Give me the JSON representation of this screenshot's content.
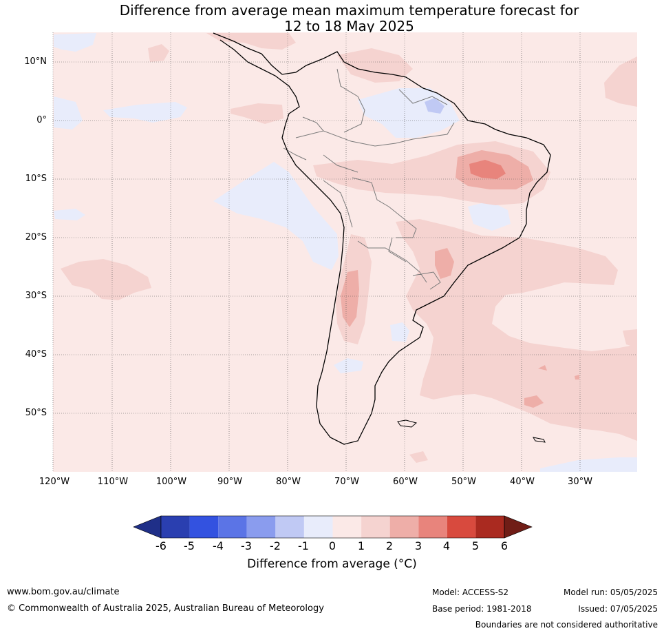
{
  "title": {
    "line1": "Difference from average mean maximum temperature forecast for",
    "line2": "12 to 18 May 2025"
  },
  "map": {
    "lat_labels": [
      "10°N",
      "0°",
      "10°S",
      "20°S",
      "30°S",
      "40°S",
      "50°S"
    ],
    "lon_labels": [
      "120°W",
      "110°W",
      "100°W",
      "90°W",
      "80°W",
      "70°W",
      "60°W",
      "50°W",
      "40°W",
      "30°W"
    ],
    "background_color": "#fbe9e7",
    "grid": true
  },
  "colorbar": {
    "ticks": [
      "-6",
      "-5",
      "-4",
      "-3",
      "-2",
      "-1",
      "0",
      "1",
      "2",
      "3",
      "4",
      "5",
      "6"
    ],
    "colors": [
      "#1f2f88",
      "#2a3fb0",
      "#3352e0",
      "#5b74e6",
      "#8a9cee",
      "#c0c9f4",
      "#e8ecfb",
      "#fbe9e7",
      "#f5d3d0",
      "#eeaea8",
      "#e8847c",
      "#d84a3e",
      "#aa2a20",
      "#701d16"
    ],
    "label": "Difference from average (°C)"
  },
  "footer": {
    "url": "www.bom.gov.au/climate",
    "copyright": "© Commonwealth of Australia 2025, Australian Bureau of Meteorology",
    "model": "Model: ACCESS-S2",
    "base_period": "Base period: 1981-2018",
    "model_run": "Model run: 05/05/2025",
    "issued": "Issued: 07/05/2025",
    "disclaimer": "Boundaries are not considered authoritative"
  }
}
